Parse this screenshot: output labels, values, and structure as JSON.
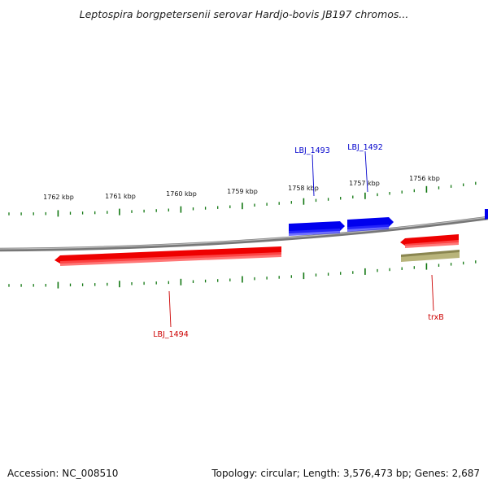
{
  "title": "Leptospira borgpetersenii serovar Hardjo-bovis JB197 chromos...",
  "footer": {
    "accession": "Accession: NC_008510",
    "summary": "Topology: circular; Length: 3,576,473 bp; Genes: 2,687"
  },
  "tick_labels": [
    "1762 kbp",
    "1761 kbp",
    "1760 kbp",
    "1759 kbp",
    "1758 kbp",
    "1757 kbp",
    "1756 kbp"
  ],
  "features": [
    {
      "label": "LBJ_1493",
      "color": "#0000cc"
    },
    {
      "label": "LBJ_1492",
      "color": "#0000cc"
    },
    {
      "label": "LBJ_1494",
      "color": "#cc0000"
    },
    {
      "label": "trxB",
      "color": "#cc0000"
    }
  ],
  "colors": {
    "backbone": "#888888",
    "tick": "#117711",
    "forward_cds": "#0000ee",
    "reverse_cds": "#ee0000",
    "gene": "#b8b47a"
  }
}
